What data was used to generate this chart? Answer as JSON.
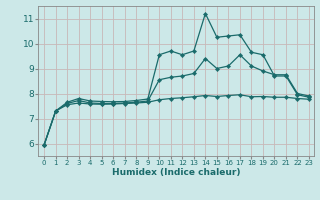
{
  "xlabel": "Humidex (Indice chaleur)",
  "bg_color": "#cce8e8",
  "line_color": "#1a6b6b",
  "grid_color": "#c8b8b8",
  "xlim": [
    -0.5,
    23.4
  ],
  "ylim": [
    5.5,
    11.5
  ],
  "xticks": [
    0,
    1,
    2,
    3,
    4,
    5,
    6,
    7,
    8,
    9,
    10,
    11,
    12,
    13,
    14,
    15,
    16,
    17,
    18,
    19,
    20,
    21,
    22,
    23
  ],
  "yticks": [
    6,
    7,
    8,
    9,
    10,
    11
  ],
  "series1_x": [
    0,
    1,
    2,
    3,
    4,
    5,
    6,
    7,
    8,
    9,
    10,
    11,
    12,
    13,
    14,
    15,
    16,
    17,
    18,
    19,
    20,
    21,
    22,
    23
  ],
  "series1_y": [
    5.95,
    7.3,
    7.65,
    7.8,
    7.7,
    7.68,
    7.67,
    7.68,
    7.72,
    7.78,
    9.55,
    9.7,
    9.55,
    9.7,
    11.2,
    10.25,
    10.3,
    10.35,
    9.65,
    9.55,
    8.7,
    8.7,
    7.95,
    7.85
  ],
  "series2_x": [
    0,
    1,
    2,
    3,
    4,
    5,
    6,
    7,
    8,
    9,
    10,
    11,
    12,
    13,
    14,
    15,
    16,
    17,
    18,
    19,
    20,
    21,
    22,
    23
  ],
  "series2_y": [
    5.95,
    7.3,
    7.6,
    7.72,
    7.62,
    7.6,
    7.6,
    7.62,
    7.65,
    7.7,
    8.55,
    8.65,
    8.7,
    8.8,
    9.4,
    9.0,
    9.1,
    9.55,
    9.1,
    8.9,
    8.75,
    8.75,
    8.0,
    7.9
  ],
  "series3_x": [
    0,
    1,
    2,
    3,
    4,
    5,
    6,
    7,
    8,
    9,
    10,
    11,
    12,
    13,
    14,
    15,
    16,
    17,
    18,
    19,
    20,
    21,
    22,
    23
  ],
  "series3_y": [
    5.95,
    7.3,
    7.55,
    7.62,
    7.58,
    7.57,
    7.58,
    7.6,
    7.62,
    7.65,
    7.75,
    7.8,
    7.83,
    7.87,
    7.92,
    7.88,
    7.92,
    7.95,
    7.87,
    7.88,
    7.85,
    7.85,
    7.8,
    7.77
  ]
}
